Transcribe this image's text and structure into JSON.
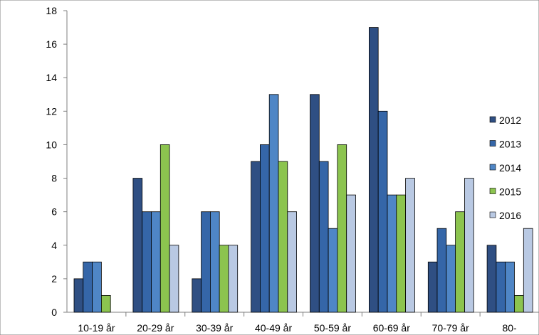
{
  "chart_data": {
    "type": "bar",
    "title": "",
    "xlabel": "",
    "ylabel": "",
    "categories": [
      "10-19 år",
      "20-29 år",
      "30-39 år",
      "40-49 år",
      "50-59 år",
      "60-69 år",
      "70-79 år",
      "80-"
    ],
    "series": [
      {
        "name": "2012",
        "color": "#2f4f83",
        "values": [
          2,
          8,
          2,
          9,
          13,
          17,
          3,
          4
        ]
      },
      {
        "name": "2013",
        "color": "#3566a8",
        "values": [
          3,
          6,
          6,
          10,
          9,
          12,
          5,
          3
        ]
      },
      {
        "name": "2014",
        "color": "#4f86c6",
        "values": [
          3,
          6,
          6,
          13,
          5,
          7,
          4,
          3
        ]
      },
      {
        "name": "2015",
        "color": "#8cc44f",
        "values": [
          1,
          10,
          4,
          9,
          10,
          7,
          6,
          1
        ]
      },
      {
        "name": "2016",
        "color": "#b9c9e3",
        "values": [
          0,
          4,
          4,
          6,
          7,
          8,
          8,
          5
        ]
      }
    ],
    "ylim": [
      0,
      18
    ],
    "yticks": [
      0,
      2,
      4,
      6,
      8,
      10,
      12,
      14,
      16,
      18
    ],
    "grid": false,
    "legend": "right"
  }
}
